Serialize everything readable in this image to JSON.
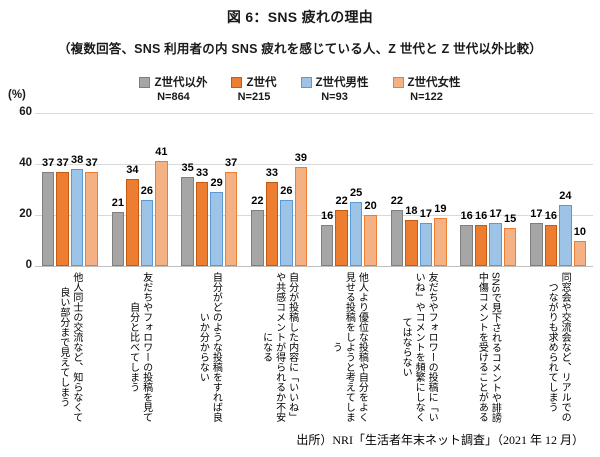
{
  "header": {
    "title": "図 6：SNS 疲れの理由",
    "subtitle": "（複数回答、SNS 利用者の内 SNS 疲れを感じている人、Z 世代と Z 世代以外比較）"
  },
  "chart_data": {
    "type": "bar",
    "title": "図 6：SNS 疲れの理由",
    "unit_label": "(%)",
    "ylim": [
      0,
      60
    ],
    "yticks": [
      0,
      20,
      40,
      60
    ],
    "grid": true,
    "legend_position": "top",
    "categories": [
      "他人同士の交流など、知らなくて良い部分まで見えてしまう",
      "友だちやフォロワーの投稿を見て自分と比べてしまう",
      "自分がどのような投稿をすれば良いか分からない",
      "自分が投稿した内容に「いいね」や共感コメントが得られるか不安になる",
      "他人より優位な投稿や自分をよく見せる投稿をしようと考えてしまう",
      "友だちやフォロワーの投稿に「いいね」やコメントを頻繁にしなくてはならない",
      "SNSで見下されるコメントや誹謗中傷コメントを受けることがある",
      "同窓会や交流会など、リアルでのつながりも求められてしまう"
    ],
    "series": [
      {
        "name": "Z世代以外",
        "n_label": "N=864",
        "fill": "#A6A6A6",
        "border": "#7F7F7F",
        "values": [
          37,
          21,
          35,
          22,
          16,
          22,
          16,
          17
        ]
      },
      {
        "name": "Z世代",
        "n_label": "N=215",
        "fill": "#ED7D31",
        "border": "#C55A11",
        "values": [
          37,
          34,
          33,
          33,
          22,
          18,
          16,
          16
        ]
      },
      {
        "name": "Z世代男性",
        "n_label": "N=93",
        "fill": "#9DC3E6",
        "border": "#5B9BD5",
        "values": [
          38,
          26,
          29,
          26,
          25,
          17,
          17,
          24
        ]
      },
      {
        "name": "Z世代女性",
        "n_label": "N=122",
        "fill": "#F4B183",
        "border": "#ED7D31",
        "values": [
          37,
          41,
          37,
          39,
          20,
          19,
          15,
          10
        ]
      }
    ]
  },
  "footer": {
    "source": "出所）NRI「生活者年末ネット調査」（2021 年 12 月）"
  }
}
